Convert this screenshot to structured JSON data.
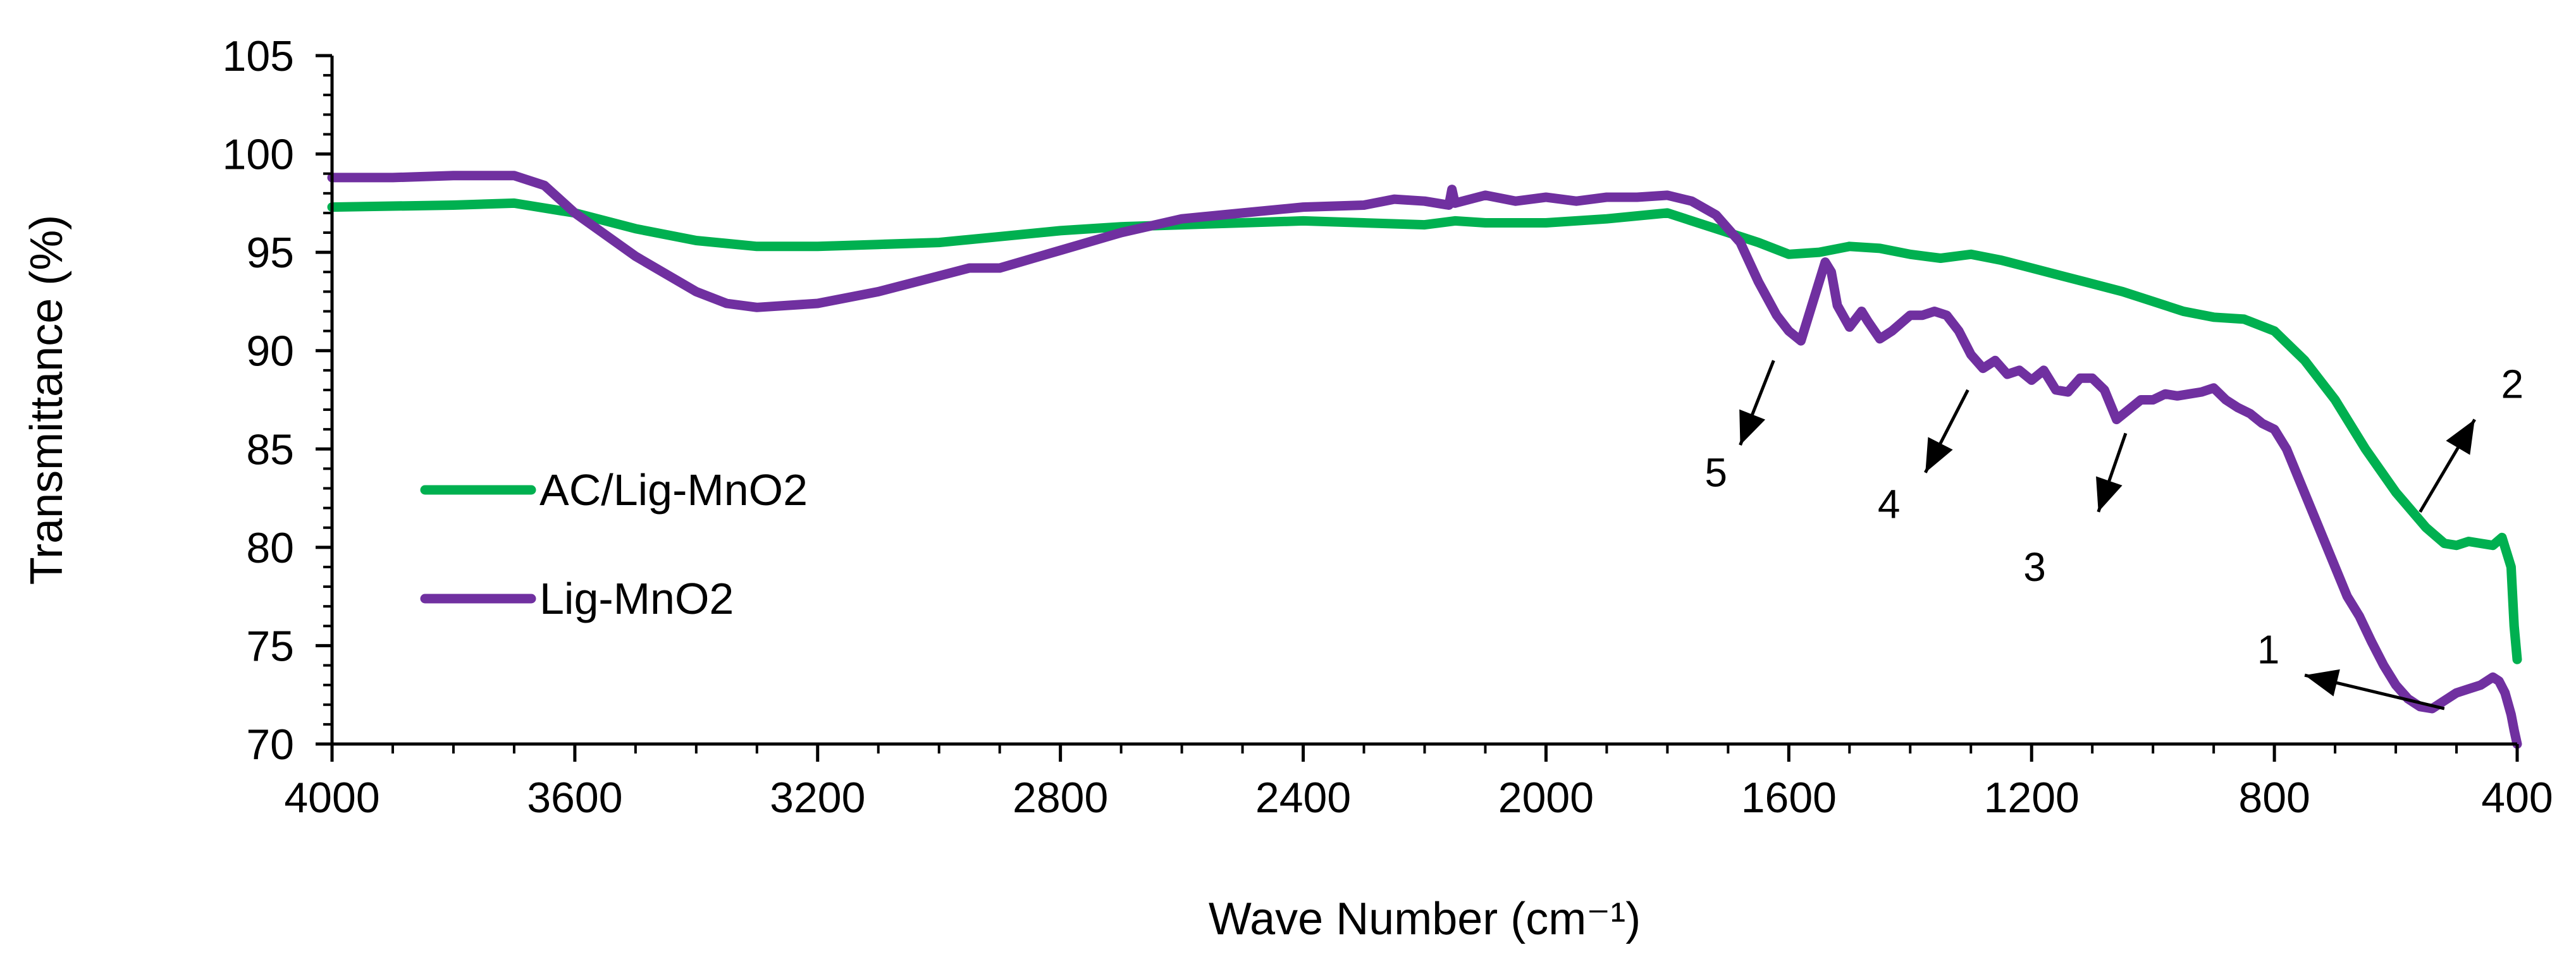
{
  "chart_data": {
    "type": "line",
    "title": "",
    "xlabel": "Wave Number (cm⁻¹)",
    "ylabel": "Transmittance (%)",
    "xlim": [
      4000,
      400
    ],
    "ylim": [
      70,
      105
    ],
    "x_ticks": [
      4000,
      3600,
      3200,
      2800,
      2400,
      2000,
      1600,
      1200,
      800,
      400
    ],
    "y_ticks": [
      70,
      75,
      80,
      85,
      90,
      95,
      100,
      105
    ],
    "grid": false,
    "legend_position": "left",
    "series": [
      {
        "name": "AC/Lig-MnO2",
        "color": "#00b050",
        "x": [
          4000,
          3800,
          3700,
          3600,
          3500,
          3400,
          3300,
          3200,
          3100,
          3000,
          2900,
          2800,
          2700,
          2600,
          2500,
          2400,
          2300,
          2200,
          2150,
          2100,
          2000,
          1900,
          1800,
          1750,
          1700,
          1650,
          1600,
          1550,
          1500,
          1450,
          1400,
          1350,
          1300,
          1250,
          1200,
          1150,
          1100,
          1050,
          1000,
          950,
          900,
          850,
          800,
          750,
          700,
          650,
          600,
          550,
          520,
          500,
          480,
          460,
          440,
          425,
          410,
          405,
          400
        ],
        "y": [
          97.3,
          97.4,
          97.5,
          97.0,
          96.2,
          95.6,
          95.3,
          95.3,
          95.4,
          95.5,
          95.8,
          96.1,
          96.3,
          96.4,
          96.5,
          96.6,
          96.5,
          96.4,
          96.6,
          96.5,
          96.5,
          96.7,
          97.0,
          96.5,
          96.0,
          95.5,
          94.9,
          95.0,
          95.3,
          95.2,
          94.9,
          94.7,
          94.9,
          94.6,
          94.2,
          93.8,
          93.4,
          93.0,
          92.5,
          92.0,
          91.7,
          91.6,
          91.0,
          89.5,
          87.5,
          85.0,
          82.8,
          81.0,
          80.2,
          80.1,
          80.3,
          80.2,
          80.1,
          80.5,
          79.0,
          76.0,
          74.3
        ]
      },
      {
        "name": "Lig-MnO2",
        "color": "#7030a0",
        "x": [
          4000,
          3900,
          3800,
          3750,
          3700,
          3650,
          3600,
          3500,
          3400,
          3350,
          3300,
          3200,
          3100,
          3000,
          2950,
          2900,
          2800,
          2700,
          2600,
          2500,
          2400,
          2300,
          2250,
          2200,
          2160,
          2155,
          2150,
          2100,
          2050,
          2000,
          1950,
          1900,
          1850,
          1800,
          1760,
          1720,
          1700,
          1680,
          1650,
          1620,
          1600,
          1580,
          1560,
          1540,
          1530,
          1520,
          1500,
          1480,
          1470,
          1450,
          1430,
          1400,
          1380,
          1360,
          1340,
          1320,
          1300,
          1280,
          1260,
          1240,
          1220,
          1200,
          1180,
          1160,
          1140,
          1120,
          1100,
          1080,
          1060,
          1040,
          1020,
          1000,
          980,
          960,
          940,
          920,
          900,
          880,
          860,
          840,
          820,
          800,
          780,
          760,
          740,
          720,
          700,
          680,
          660,
          640,
          620,
          600,
          580,
          560,
          540,
          520,
          500,
          480,
          460,
          440,
          430,
          420,
          410,
          405,
          400
        ],
        "y": [
          98.8,
          98.8,
          98.9,
          98.9,
          98.9,
          98.4,
          97.0,
          94.8,
          93.0,
          92.4,
          92.2,
          92.4,
          93.0,
          93.8,
          94.2,
          94.2,
          95.1,
          96.0,
          96.7,
          97.0,
          97.3,
          97.4,
          97.7,
          97.6,
          97.4,
          98.2,
          97.5,
          97.9,
          97.6,
          97.8,
          97.6,
          97.8,
          97.8,
          97.9,
          97.6,
          96.9,
          96.2,
          95.5,
          93.5,
          91.8,
          91.0,
          90.5,
          92.5,
          94.5,
          94.0,
          92.3,
          91.2,
          92.0,
          91.5,
          90.6,
          91.0,
          91.8,
          91.8,
          92.0,
          91.8,
          91.0,
          89.8,
          89.1,
          89.5,
          88.8,
          89.0,
          88.5,
          89.0,
          88.0,
          87.9,
          88.6,
          88.6,
          88.0,
          86.5,
          87.0,
          87.5,
          87.5,
          87.8,
          87.7,
          87.8,
          87.9,
          88.1,
          87.5,
          87.1,
          86.8,
          86.3,
          86.0,
          85.0,
          83.5,
          82.0,
          80.5,
          79.0,
          77.5,
          76.5,
          75.2,
          74.0,
          73.0,
          72.3,
          71.9,
          71.8,
          72.2,
          72.6,
          72.8,
          73.0,
          73.4,
          73.2,
          72.6,
          71.5,
          70.7,
          70.0
        ]
      }
    ],
    "annotations": [
      {
        "label": "1",
        "arrow_from": [
          520,
          71.8
        ],
        "arrow_to": [
          750,
          73.5
        ],
        "text_at": [
          810,
          74.8
        ]
      },
      {
        "label": "2",
        "arrow_from": [
          560,
          81.8
        ],
        "arrow_to": [
          470,
          86.5
        ],
        "text_at": [
          408,
          88.3
        ]
      },
      {
        "label": "3",
        "arrow_from": [
          1045,
          85.8
        ],
        "arrow_to": [
          1090,
          81.8
        ],
        "text_at": [
          1195,
          79.0
        ]
      },
      {
        "label": "4",
        "arrow_from": [
          1305,
          88.0
        ],
        "arrow_to": [
          1375,
          83.8
        ],
        "text_at": [
          1435,
          82.2
        ]
      },
      {
        "label": "5",
        "arrow_from": [
          1625,
          89.5
        ],
        "arrow_to": [
          1680,
          85.2
        ],
        "text_at": [
          1720,
          83.8
        ]
      }
    ]
  }
}
